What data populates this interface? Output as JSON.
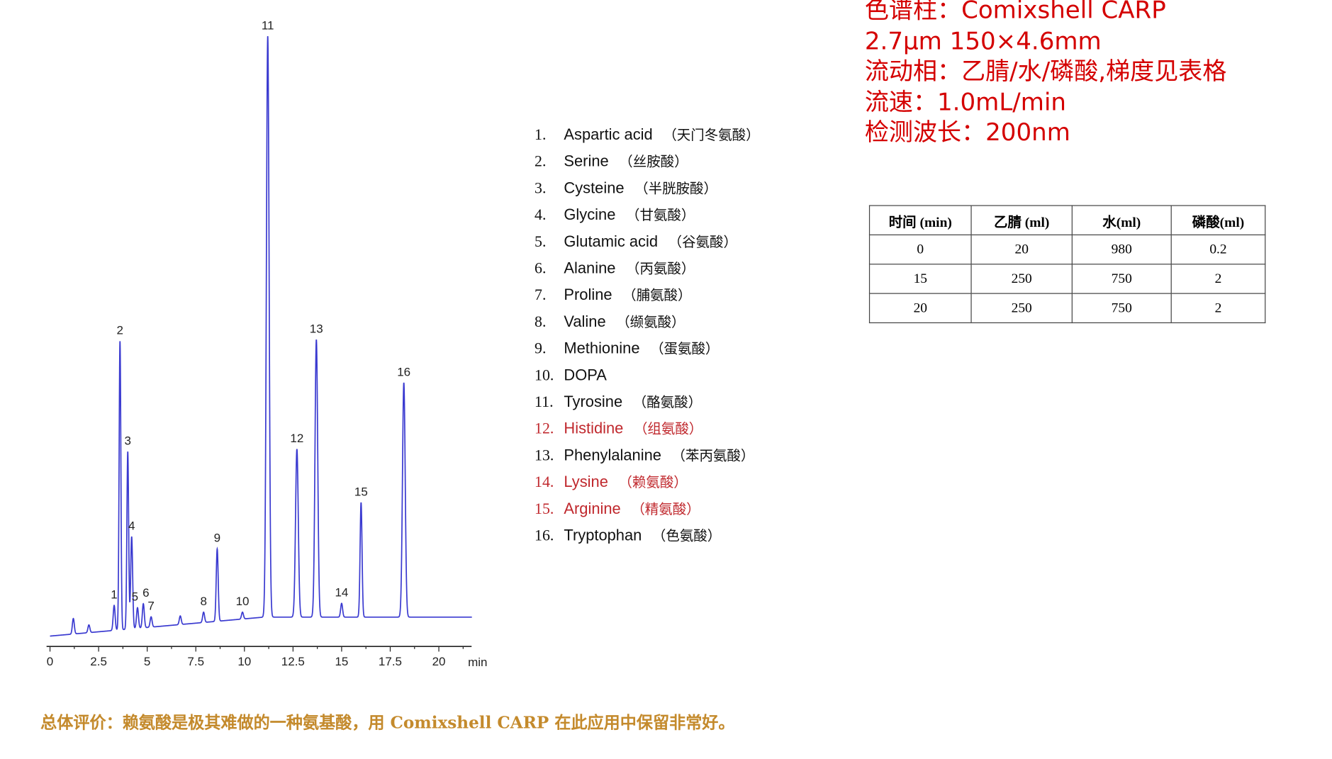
{
  "chart_data": {
    "type": "line",
    "xlabel": "min",
    "xlim": [
      0,
      21.7
    ],
    "x_ticks": [
      "0",
      "2.5",
      "5",
      "7.5",
      "10",
      "12.5",
      "15",
      "17.5",
      "20"
    ],
    "y_axis_shown": false,
    "grid": false,
    "line_color": "#3a3ad0",
    "peaks": [
      {
        "label": "1",
        "rt": 3.3,
        "height": 29
      },
      {
        "label": "2",
        "rt": 3.6,
        "height": 335
      },
      {
        "label": "3",
        "rt": 4.0,
        "height": 206
      },
      {
        "label": "4",
        "rt": 4.2,
        "height": 107
      },
      {
        "label": "5",
        "rt": 4.5,
        "height": 24
      },
      {
        "label": "6",
        "rt": 4.8,
        "height": 28
      },
      {
        "label": "7",
        "rt": 5.2,
        "height": 12
      },
      {
        "label": "8",
        "rt": 7.9,
        "height": 12
      },
      {
        "label": "9",
        "rt": 8.6,
        "height": 84
      },
      {
        "label": "10",
        "rt": 9.9,
        "height": 8
      },
      {
        "label": "11",
        "rt": 11.2,
        "height": 674
      },
      {
        "label": "12",
        "rt": 12.7,
        "height": 195
      },
      {
        "label": "13",
        "rt": 13.7,
        "height": 322
      },
      {
        "label": "14",
        "rt": 15.0,
        "height": 16
      },
      {
        "label": "15",
        "rt": 16.0,
        "height": 133
      },
      {
        "label": "16",
        "rt": 18.2,
        "height": 272
      }
    ],
    "unlabeled_peaks": [
      {
        "rt": 1.2,
        "height": 18
      },
      {
        "rt": 2.0,
        "height": 9
      },
      {
        "rt": 6.7,
        "height": 10
      }
    ]
  },
  "legend": [
    {
      "num": "1.",
      "name": "Aspartic acid",
      "cn": "（天门冬氨酸）",
      "highlight": false
    },
    {
      "num": "2.",
      "name": "Serine",
      "cn": "（丝胺酸）",
      "highlight": false
    },
    {
      "num": "3.",
      "name": "Cysteine",
      "cn": "（半胱胺酸）",
      "highlight": false
    },
    {
      "num": "4.",
      "name": "Glycine",
      "cn": "（甘氨酸）",
      "highlight": false
    },
    {
      "num": "5.",
      "name": "Glutamic acid",
      "cn": "（谷氨酸）",
      "highlight": false
    },
    {
      "num": "6.",
      "name": "Alanine",
      "cn": "（丙氨酸）",
      "highlight": false
    },
    {
      "num": "7.",
      "name": "Proline",
      "cn": "（脯氨酸）",
      "highlight": false
    },
    {
      "num": "8.",
      "name": "Valine",
      "cn": "（缬氨酸）",
      "highlight": false
    },
    {
      "num": "9.",
      "name": "Methionine",
      "cn": "（蛋氨酸）",
      "highlight": false
    },
    {
      "num": "10.",
      "name": "DOPA",
      "cn": "",
      "highlight": false
    },
    {
      "num": "11.",
      "name": "Tyrosine",
      "cn": "（酪氨酸）",
      "highlight": false
    },
    {
      "num": "12.",
      "name": "Histidine",
      "cn": "（组氨酸）",
      "highlight": true
    },
    {
      "num": "13.",
      "name": "Phenylalanine",
      "cn": "（苯丙氨酸）",
      "highlight": false
    },
    {
      "num": "14.",
      "name": "Lysine",
      "cn": "（赖氨酸）",
      "highlight": true
    },
    {
      "num": "15.",
      "name": "Arginine",
      "cn": "（精氨酸）",
      "highlight": true
    },
    {
      "num": "16.",
      "name": "Tryptophan",
      "cn": "（色氨酸）",
      "highlight": false
    }
  ],
  "info": {
    "column": "色谱柱：Comixshell CARP",
    "column_spec": "2.7μm 150×4.6mm",
    "mobile_phase": "流动相：乙腈/水/磷酸,梯度见表格",
    "flow_rate": "流速：1.0mL/min",
    "wavelength": "检测波长：200nm"
  },
  "gradient_table": {
    "headers": [
      "时间 (min)",
      "乙腈 (ml)",
      "水(ml)",
      "磷酸(ml)"
    ],
    "rows": [
      [
        "0",
        "20",
        "980",
        "0.2"
      ],
      [
        "15",
        "250",
        "750",
        "2"
      ],
      [
        "20",
        "250",
        "750",
        "2"
      ]
    ]
  },
  "summary": "总体评价：赖氨酸是极其难做的一种氨基酸，用 Comixshell CARP 在此应用中保留非常好。",
  "colors": {
    "info_text": "#d40000",
    "highlight": "#c0282d",
    "summary": "#c48a2c",
    "trace": "#3a3ad0"
  }
}
